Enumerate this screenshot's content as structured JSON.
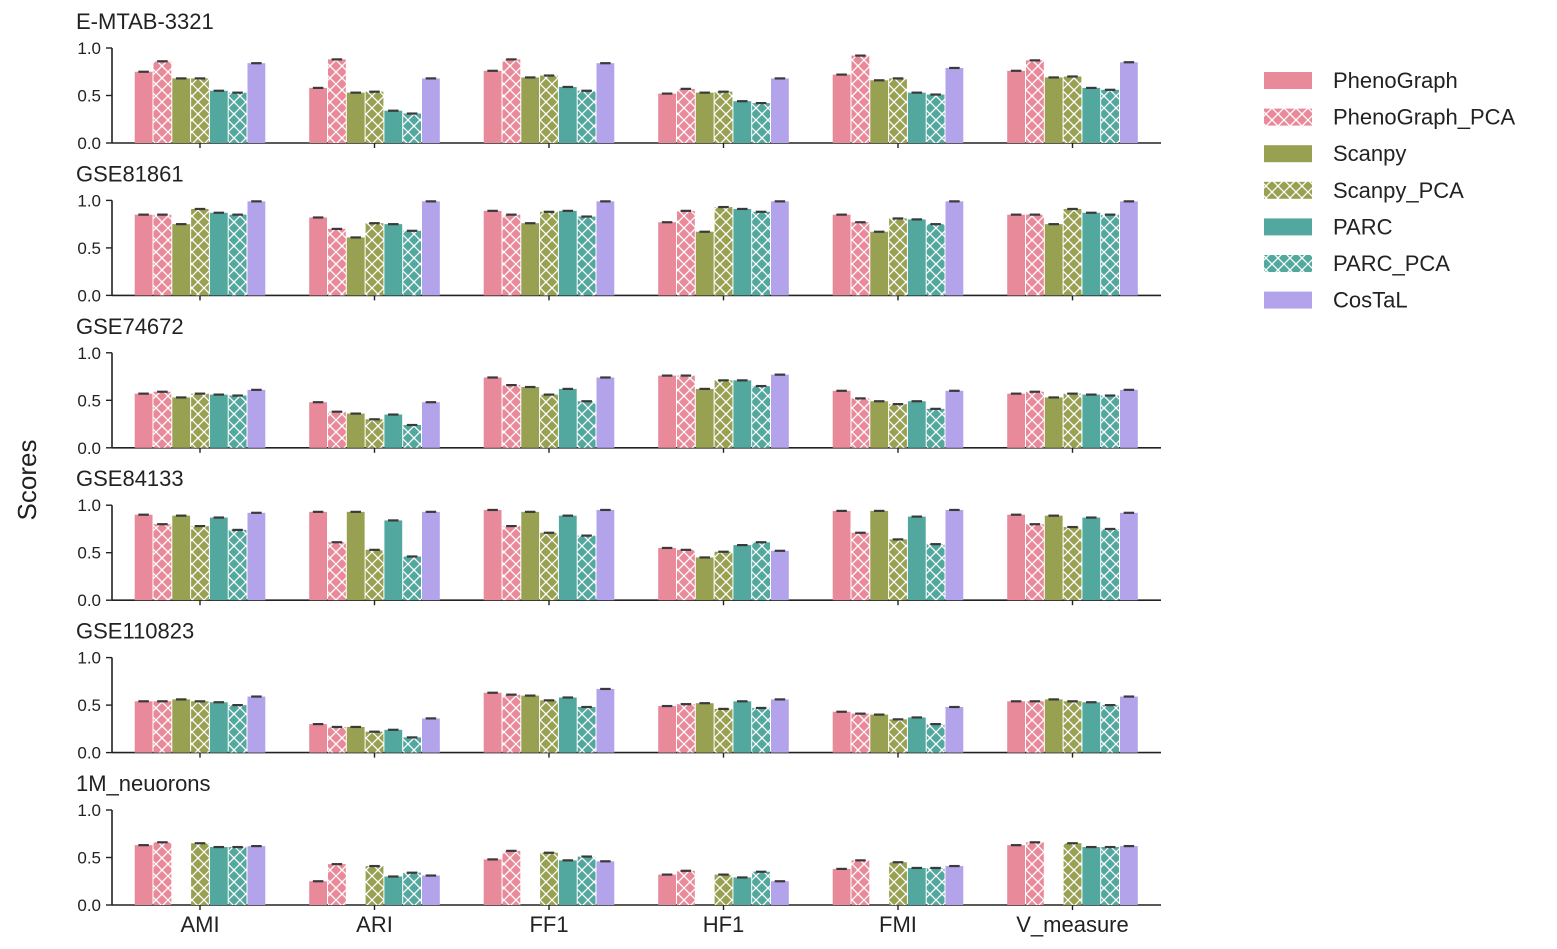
{
  "chart_data": {
    "type": "bar",
    "ylabel": "Scores",
    "ylim": [
      0,
      1.0
    ],
    "yticks": [
      "0.0",
      "0.5",
      "1.0"
    ],
    "grid": false,
    "legend_placement": "right",
    "categories": [
      "AMI",
      "ARI",
      "FF1",
      "HF1",
      "FMI",
      "V_measure"
    ],
    "series": [
      {
        "name": "PhenoGraph",
        "color": "#e88a9a",
        "hatch": false
      },
      {
        "name": "PhenoGraph_PCA",
        "color": "#e88a9a",
        "hatch": true
      },
      {
        "name": "Scanpy",
        "color": "#98a052",
        "hatch": false
      },
      {
        "name": "Scanpy_PCA",
        "color": "#98a052",
        "hatch": true
      },
      {
        "name": "PARC",
        "color": "#52a89e",
        "hatch": false
      },
      {
        "name": "PARC_PCA",
        "color": "#52a89e",
        "hatch": true
      },
      {
        "name": "CosTaL",
        "color": "#b3a3ea",
        "hatch": false
      }
    ],
    "panels": [
      {
        "title": "E-MTAB-3321",
        "values": [
          [
            0.75,
            0.86,
            0.68,
            0.68,
            0.55,
            0.53,
            0.84
          ],
          [
            0.58,
            0.88,
            0.53,
            0.54,
            0.34,
            0.31,
            0.68
          ],
          [
            0.76,
            0.88,
            0.69,
            0.71,
            0.59,
            0.55,
            0.84
          ],
          [
            0.52,
            0.57,
            0.53,
            0.54,
            0.44,
            0.42,
            0.68
          ],
          [
            0.72,
            0.92,
            0.66,
            0.68,
            0.53,
            0.51,
            0.79
          ],
          [
            0.76,
            0.87,
            0.69,
            0.7,
            0.58,
            0.56,
            0.85
          ]
        ]
      },
      {
        "title": "GSE81861",
        "values": [
          [
            0.85,
            0.85,
            0.75,
            0.91,
            0.87,
            0.85,
            0.99
          ],
          [
            0.82,
            0.7,
            0.61,
            0.76,
            0.75,
            0.68,
            0.99
          ],
          [
            0.89,
            0.85,
            0.76,
            0.88,
            0.89,
            0.83,
            0.99
          ],
          [
            0.77,
            0.89,
            0.67,
            0.93,
            0.91,
            0.88,
            0.99
          ],
          [
            0.85,
            0.77,
            0.67,
            0.81,
            0.8,
            0.75,
            0.99
          ],
          [
            0.85,
            0.85,
            0.75,
            0.91,
            0.87,
            0.85,
            0.99
          ]
        ]
      },
      {
        "title": "GSE74672",
        "values": [
          [
            0.57,
            0.59,
            0.53,
            0.57,
            0.56,
            0.55,
            0.61
          ],
          [
            0.48,
            0.38,
            0.36,
            0.3,
            0.35,
            0.24,
            0.48
          ],
          [
            0.74,
            0.66,
            0.64,
            0.56,
            0.62,
            0.49,
            0.74
          ],
          [
            0.76,
            0.76,
            0.62,
            0.71,
            0.71,
            0.65,
            0.77
          ],
          [
            0.6,
            0.52,
            0.49,
            0.46,
            0.49,
            0.41,
            0.6
          ],
          [
            0.57,
            0.59,
            0.53,
            0.57,
            0.56,
            0.55,
            0.61
          ]
        ]
      },
      {
        "title": "GSE84133",
        "values": [
          [
            0.9,
            0.8,
            0.89,
            0.78,
            0.87,
            0.74,
            0.92
          ],
          [
            0.93,
            0.61,
            0.93,
            0.53,
            0.84,
            0.46,
            0.93
          ],
          [
            0.95,
            0.78,
            0.93,
            0.71,
            0.89,
            0.68,
            0.95
          ],
          [
            0.55,
            0.53,
            0.45,
            0.51,
            0.58,
            0.61,
            0.52
          ],
          [
            0.94,
            0.71,
            0.94,
            0.64,
            0.88,
            0.59,
            0.95
          ],
          [
            0.9,
            0.8,
            0.89,
            0.77,
            0.87,
            0.75,
            0.92
          ]
        ]
      },
      {
        "title": "GSE110823",
        "values": [
          [
            0.54,
            0.54,
            0.56,
            0.54,
            0.53,
            0.5,
            0.59
          ],
          [
            0.3,
            0.27,
            0.27,
            0.22,
            0.24,
            0.16,
            0.36
          ],
          [
            0.63,
            0.61,
            0.6,
            0.55,
            0.58,
            0.48,
            0.67
          ],
          [
            0.49,
            0.51,
            0.52,
            0.46,
            0.54,
            0.47,
            0.56
          ],
          [
            0.43,
            0.41,
            0.4,
            0.35,
            0.37,
            0.3,
            0.48
          ],
          [
            0.54,
            0.54,
            0.56,
            0.54,
            0.53,
            0.5,
            0.59
          ]
        ]
      },
      {
        "title": "1M_neuorons",
        "values": [
          [
            0.63,
            0.66,
            null,
            0.65,
            0.61,
            0.61,
            0.62
          ],
          [
            0.25,
            0.43,
            null,
            0.41,
            0.3,
            0.34,
            0.31
          ],
          [
            0.48,
            0.57,
            null,
            0.55,
            0.47,
            0.51,
            0.46
          ],
          [
            0.32,
            0.36,
            null,
            0.32,
            0.29,
            0.35,
            0.25
          ],
          [
            0.38,
            0.47,
            null,
            0.45,
            0.39,
            0.39,
            0.41
          ],
          [
            0.63,
            0.66,
            null,
            0.65,
            0.61,
            0.61,
            0.62
          ]
        ]
      }
    ]
  }
}
